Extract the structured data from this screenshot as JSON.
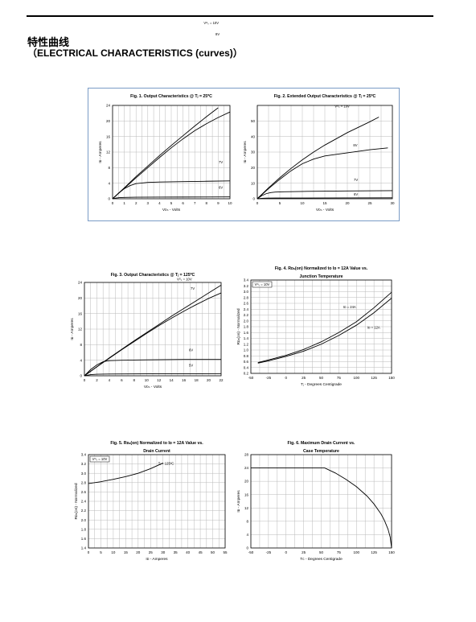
{
  "page": {
    "title": "特性曲线",
    "subtitle": "（ELECTRICAL CHARACTERISTICS (curves)）"
  },
  "chart_data": [
    {
      "id": "fig1",
      "type": "line",
      "title": "Fig. 1. Output Characteristics @ Tⱼ = 25ºC",
      "xlabel": "Vᴅₛ - Volts",
      "ylabel": "Iᴅ - Amperes",
      "xlim": [
        0,
        10
      ],
      "ylim": [
        0,
        24
      ],
      "xticks": [
        0,
        1,
        2,
        3,
        4,
        5,
        6,
        7,
        8,
        9,
        10
      ],
      "yticks": [
        0,
        4,
        8,
        12,
        16,
        20,
        24
      ],
      "grid": true,
      "series": [
        {
          "name": "Vᴳₛ = 10V",
          "x": [
            0,
            1,
            2,
            3,
            4,
            5,
            6,
            7,
            8,
            9
          ],
          "y": [
            0,
            2.8,
            5.7,
            8.4,
            11.1,
            13.7,
            16.2,
            18.7,
            21.1,
            23.4
          ]
        },
        {
          "name": "8V",
          "x": [
            0,
            1,
            2,
            3,
            4,
            5,
            6,
            7,
            8,
            9,
            10
          ],
          "y": [
            0,
            2.7,
            5.4,
            8.0,
            10.6,
            13.1,
            15.4,
            17.5,
            19.3,
            20.9,
            22.3
          ]
        },
        {
          "name": "7V",
          "x": [
            0,
            0.5,
            1,
            1.5,
            2,
            3,
            4,
            6,
            8,
            10
          ],
          "y": [
            0,
            1.4,
            2.6,
            3.4,
            3.9,
            4.2,
            4.3,
            4.4,
            4.5,
            4.6
          ]
        },
        {
          "name": "6V",
          "x": [
            0,
            0.3,
            0.6,
            1,
            2,
            4,
            6,
            8,
            10
          ],
          "y": [
            0,
            0.2,
            0.3,
            0.35,
            0.4,
            0.42,
            0.44,
            0.46,
            0.48
          ]
        }
      ]
    },
    {
      "id": "fig2",
      "type": "line",
      "title": "Fig. 2. Extended Output Characteristics @ Tⱼ = 25ºC",
      "xlabel": "Vᴅₛ - Volts",
      "ylabel": "Iᴅ - Amperes",
      "xlim": [
        0,
        30
      ],
      "ylim": [
        0,
        60
      ],
      "xticks": [
        0,
        5,
        10,
        15,
        20,
        25,
        30
      ],
      "yticks": [
        0,
        10,
        20,
        30,
        40,
        50
      ],
      "grid": true,
      "series": [
        {
          "name": "Vᴳₛ = 10V",
          "x": [
            0,
            2.5,
            5,
            7.5,
            10,
            12.5,
            15,
            17.5,
            20,
            22.5,
            25,
            27
          ],
          "y": [
            0,
            7,
            13.5,
            19.5,
            25,
            30,
            34.5,
            38.5,
            42.5,
            46,
            49.5,
            52.5
          ]
        },
        {
          "name": "8V",
          "x": [
            0,
            2.5,
            5,
            7.5,
            10,
            12.5,
            15,
            20,
            25,
            29
          ],
          "y": [
            0,
            6.5,
            12.5,
            18,
            22.5,
            25.5,
            27.5,
            29.5,
            31.5,
            32.7
          ]
        },
        {
          "name": "7V",
          "x": [
            0,
            1,
            2,
            3,
            4,
            6,
            10,
            20,
            30
          ],
          "y": [
            0,
            2,
            3.3,
            4,
            4.3,
            4.5,
            4.7,
            5,
            5.2
          ]
        },
        {
          "name": "6V",
          "x": [
            0,
            1,
            2,
            4,
            10,
            20,
            30
          ],
          "y": [
            0,
            0.3,
            0.4,
            0.45,
            0.5,
            0.55,
            0.6
          ]
        }
      ]
    },
    {
      "id": "fig3",
      "type": "line",
      "title": "Fig. 3. Output Characteristics @ Tⱼ = 125ºC",
      "xlabel": "Vᴅₛ - Volts",
      "ylabel": "Iᴅ - Amperes",
      "xlim": [
        0,
        22
      ],
      "ylim": [
        0,
        24
      ],
      "xticks": [
        0,
        2,
        4,
        6,
        8,
        10,
        12,
        14,
        16,
        18,
        20,
        22
      ],
      "yticks": [
        0,
        4,
        8,
        12,
        16,
        20,
        24
      ],
      "grid": true,
      "series": [
        {
          "name": "Vᴳₛ = 10V",
          "x": [
            0,
            2,
            4,
            6,
            8,
            10,
            12,
            14,
            16,
            18,
            20,
            22
          ],
          "y": [
            0,
            2.3,
            4.6,
            6.8,
            9.0,
            11.1,
            13.2,
            15.3,
            17.3,
            19.3,
            21.3,
            23.3
          ]
        },
        {
          "name": "7V",
          "x": [
            0,
            2,
            4,
            6,
            8,
            10,
            12,
            14,
            16,
            18,
            20,
            22
          ],
          "y": [
            0,
            2.3,
            4.5,
            6.7,
            8.8,
            10.9,
            12.9,
            14.8,
            16.6,
            18.3,
            19.9,
            21.3
          ]
        },
        {
          "name": "6V",
          "x": [
            0,
            1,
            2,
            3,
            4,
            6,
            10,
            16,
            22
          ],
          "y": [
            0,
            1.6,
            2.8,
            3.6,
            3.9,
            4.0,
            4.1,
            4.2,
            4.2
          ]
        },
        {
          "name": "5V",
          "x": [
            0,
            1,
            2,
            4,
            10,
            22
          ],
          "y": [
            0,
            0.3,
            0.4,
            0.45,
            0.5,
            0.55
          ]
        }
      ]
    },
    {
      "id": "fig4",
      "type": "line",
      "title": "Fig. 4. Rᴅₛ(on) Normalized to Iᴅ = 12A Value vs.",
      "title2": "Junction Temperature",
      "xlabel": "Tⱼ - Degrees Centigrade",
      "ylabel": "Rᴅₛ(on) - Normalized",
      "xlim": [
        -50,
        150
      ],
      "ylim": [
        0.2,
        3.4
      ],
      "xticks": [
        -50,
        -25,
        0,
        25,
        50,
        75,
        100,
        125,
        150
      ],
      "yticks": [
        0.2,
        0.6,
        1.0,
        1.4,
        1.8,
        2.2,
        2.6,
        3.0,
        3.4
      ],
      "ytick_labels": [
        "0.2",
        "0.6",
        "1.0",
        "1.4",
        "1.8",
        "2.2",
        "2.6",
        "3.0",
        "3.4"
      ],
      "all_yticks": [
        0.2,
        0.4,
        0.6,
        0.8,
        1.0,
        1.2,
        1.4,
        1.6,
        1.8,
        2.0,
        2.2,
        2.4,
        2.6,
        2.8,
        3.0,
        3.2,
        3.4
      ],
      "all_ytick_labels": [
        "0.2",
        "0.4",
        "0.6",
        "0.8",
        "1.0",
        "1.2",
        "1.4",
        "1.6",
        "1.8",
        "2.0",
        "2.2",
        "2.4",
        "2.6",
        "2.8",
        "3.0",
        "3.2",
        "3.4"
      ],
      "legend": "Vᴳₛ = 10V",
      "grid": true,
      "series": [
        {
          "name": "Iᴅ = 24A",
          "x": [
            -40,
            -25,
            0,
            25,
            50,
            75,
            100,
            125,
            150
          ],
          "y": [
            0.57,
            0.66,
            0.82,
            1.02,
            1.28,
            1.6,
            1.97,
            2.45,
            2.98
          ]
        },
        {
          "name": "Iᴅ = 12A",
          "x": [
            -40,
            -25,
            0,
            25,
            50,
            75,
            100,
            125,
            150
          ],
          "y": [
            0.55,
            0.63,
            0.78,
            0.96,
            1.2,
            1.5,
            1.85,
            2.28,
            2.78
          ]
        }
      ]
    },
    {
      "id": "fig5",
      "type": "line",
      "title": "Fig. 5. Rᴅₛ(on) Normalized to Iᴅ = 12A Value vs.",
      "title2": "Drain Current",
      "xlabel": "Iᴅ - Amperes",
      "ylabel": "Rᴅₛ(on) - Normalized",
      "xlim": [
        0,
        55
      ],
      "ylim": [
        1.4,
        3.4
      ],
      "xticks": [
        0,
        5,
        10,
        15,
        20,
        25,
        30,
        35,
        40,
        45,
        50,
        55
      ],
      "yticks": [
        1.4,
        1.6,
        1.8,
        2.0,
        2.2,
        2.4,
        2.6,
        2.8,
        3.0,
        3.2,
        3.4
      ],
      "ytick_labels": [
        "1.4",
        "1.6",
        "1.8",
        "2.0",
        "2.2",
        "2.4",
        "2.6",
        "2.8",
        "3.0",
        "3.2",
        "3.4"
      ],
      "legend": "Vᴳₛ = 10V",
      "grid": true,
      "series": [
        {
          "name": "Tⱼ = 125ºC",
          "x": [
            0,
            5,
            10,
            15,
            20,
            25,
            30
          ],
          "y": [
            2.78,
            2.82,
            2.87,
            2.93,
            3.0,
            3.1,
            3.22
          ]
        }
      ]
    },
    {
      "id": "fig6",
      "type": "line",
      "title": "Fig. 6. Maximum Drain Current vs.",
      "title2": "Case Temperature",
      "xlabel": "Tᴄ - Degrees Centigrade",
      "ylabel": "Iᴅ - Amperes",
      "xlim": [
        -50,
        150
      ],
      "ylim": [
        0,
        28
      ],
      "xticks": [
        -50,
        -25,
        0,
        25,
        50,
        75,
        100,
        125,
        150
      ],
      "yticks": [
        0,
        4,
        8,
        12,
        16,
        20,
        24,
        28
      ],
      "grid": true,
      "series": [
        {
          "name": "",
          "x": [
            -50,
            55,
            70,
            85,
            100,
            115,
            125,
            135,
            140,
            145,
            148,
            150
          ],
          "y": [
            24,
            24,
            22.5,
            20.6,
            18.4,
            15.6,
            13.2,
            10.2,
            8.2,
            5.6,
            3.3,
            0
          ]
        }
      ]
    }
  ]
}
